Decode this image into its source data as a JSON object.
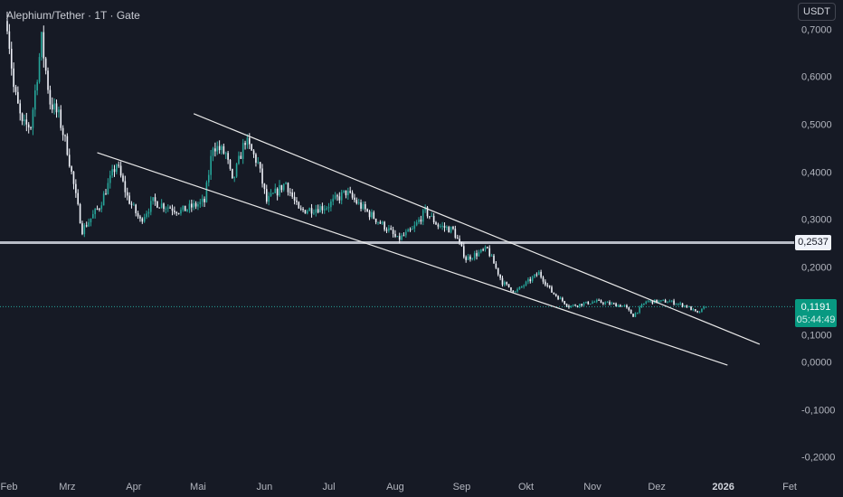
{
  "header": {
    "title": "Alephium/Tether · 1T · Gate",
    "currency_button": "USDT"
  },
  "colors": {
    "background": "#161a25",
    "up": "#26a69a",
    "down": "#f0f3fa",
    "trendline": "#e8e8e8",
    "price_label": "#089981"
  },
  "chart_data": {
    "type": "candlestick",
    "title": "Alephium/Tether · 1T · Gate",
    "ylim": [
      -0.22,
      0.74
    ],
    "y_ticks": [
      "0,7000",
      "0,6000",
      "0,5000",
      "0,4000",
      "0,3000",
      "0,2000",
      "0,1000",
      "0,0000",
      "-0,1000",
      "-0,2000"
    ],
    "y_tick_values": [
      0.7,
      0.6,
      0.5,
      0.4,
      0.3,
      0.2,
      0.1,
      0,
      -0.1,
      -0.2
    ],
    "x_ticks": [
      {
        "label": "Feb",
        "date": "2025-02-01"
      },
      {
        "label": "Mrz",
        "date": "2025-03-01"
      },
      {
        "label": "Apr",
        "date": "2025-04-01"
      },
      {
        "label": "Mai",
        "date": "2025-05-01"
      },
      {
        "label": "Jun",
        "date": "2025-06-01"
      },
      {
        "label": "Jul",
        "date": "2025-07-01"
      },
      {
        "label": "Aug",
        "date": "2025-08-01"
      },
      {
        "label": "Sep",
        "date": "2025-09-01"
      },
      {
        "label": "Okt",
        "date": "2025-10-01"
      },
      {
        "label": "Nov",
        "date": "2025-11-01"
      },
      {
        "label": "Dez",
        "date": "2025-12-01"
      },
      {
        "label": "2026",
        "date": "2026-01-01",
        "bold": true
      },
      {
        "label": "Fet",
        "date": "2026-02-01"
      }
    ],
    "close_path": [
      [
        "2025-02-01",
        0.72
      ],
      [
        "2025-02-04",
        0.58
      ],
      [
        "2025-02-08",
        0.5
      ],
      [
        "2025-02-12",
        0.5
      ],
      [
        "2025-02-17",
        0.68
      ],
      [
        "2025-02-21",
        0.55
      ],
      [
        "2025-02-25",
        0.52
      ],
      [
        "2025-03-01",
        0.45
      ],
      [
        "2025-03-05",
        0.35
      ],
      [
        "2025-03-08",
        0.28
      ],
      [
        "2025-03-16",
        0.33
      ],
      [
        "2025-03-24",
        0.42
      ],
      [
        "2025-03-29",
        0.35
      ],
      [
        "2025-04-04",
        0.3
      ],
      [
        "2025-04-10",
        0.34
      ],
      [
        "2025-04-23",
        0.32
      ],
      [
        "2025-05-04",
        0.34
      ],
      [
        "2025-05-08",
        0.46
      ],
      [
        "2025-05-14",
        0.44
      ],
      [
        "2025-05-17",
        0.38
      ],
      [
        "2025-05-23",
        0.47
      ],
      [
        "2025-05-29",
        0.42
      ],
      [
        "2025-06-02",
        0.34
      ],
      [
        "2025-06-11",
        0.38
      ],
      [
        "2025-06-17",
        0.32
      ],
      [
        "2025-06-30",
        0.33
      ],
      [
        "2025-07-09",
        0.36
      ],
      [
        "2025-07-16",
        0.33
      ],
      [
        "2025-07-29",
        0.28
      ],
      [
        "2025-08-02",
        0.26
      ],
      [
        "2025-08-09",
        0.28
      ],
      [
        "2025-08-15",
        0.32
      ],
      [
        "2025-08-21",
        0.29
      ],
      [
        "2025-08-28",
        0.28
      ],
      [
        "2025-09-03",
        0.22
      ],
      [
        "2025-09-13",
        0.24
      ],
      [
        "2025-09-20",
        0.17
      ],
      [
        "2025-09-26",
        0.15
      ],
      [
        "2025-10-07",
        0.19
      ],
      [
        "2025-10-13",
        0.15
      ],
      [
        "2025-10-21",
        0.12
      ],
      [
        "2025-11-03",
        0.13
      ],
      [
        "2025-11-16",
        0.12
      ],
      [
        "2025-11-20",
        0.1
      ],
      [
        "2025-11-26",
        0.13
      ],
      [
        "2025-12-07",
        0.13
      ],
      [
        "2025-12-15",
        0.12
      ],
      [
        "2025-12-20",
        0.105
      ],
      [
        "2025-12-24",
        0.1191
      ]
    ],
    "trendlines": [
      {
        "from": [
          "2025-04-29",
          0.525
        ],
        "to": [
          "2026-01-18",
          0.04
        ]
      },
      {
        "from": [
          "2025-03-15",
          0.443
        ],
        "to": [
          "2026-01-03",
          -0.004
        ]
      }
    ],
    "horizontal_line": {
      "value": 0.2537,
      "label": "0,2537"
    },
    "last_price": {
      "value": 0.1191,
      "label": "0,1191",
      "countdown": "05:44:49"
    },
    "grid": false
  }
}
